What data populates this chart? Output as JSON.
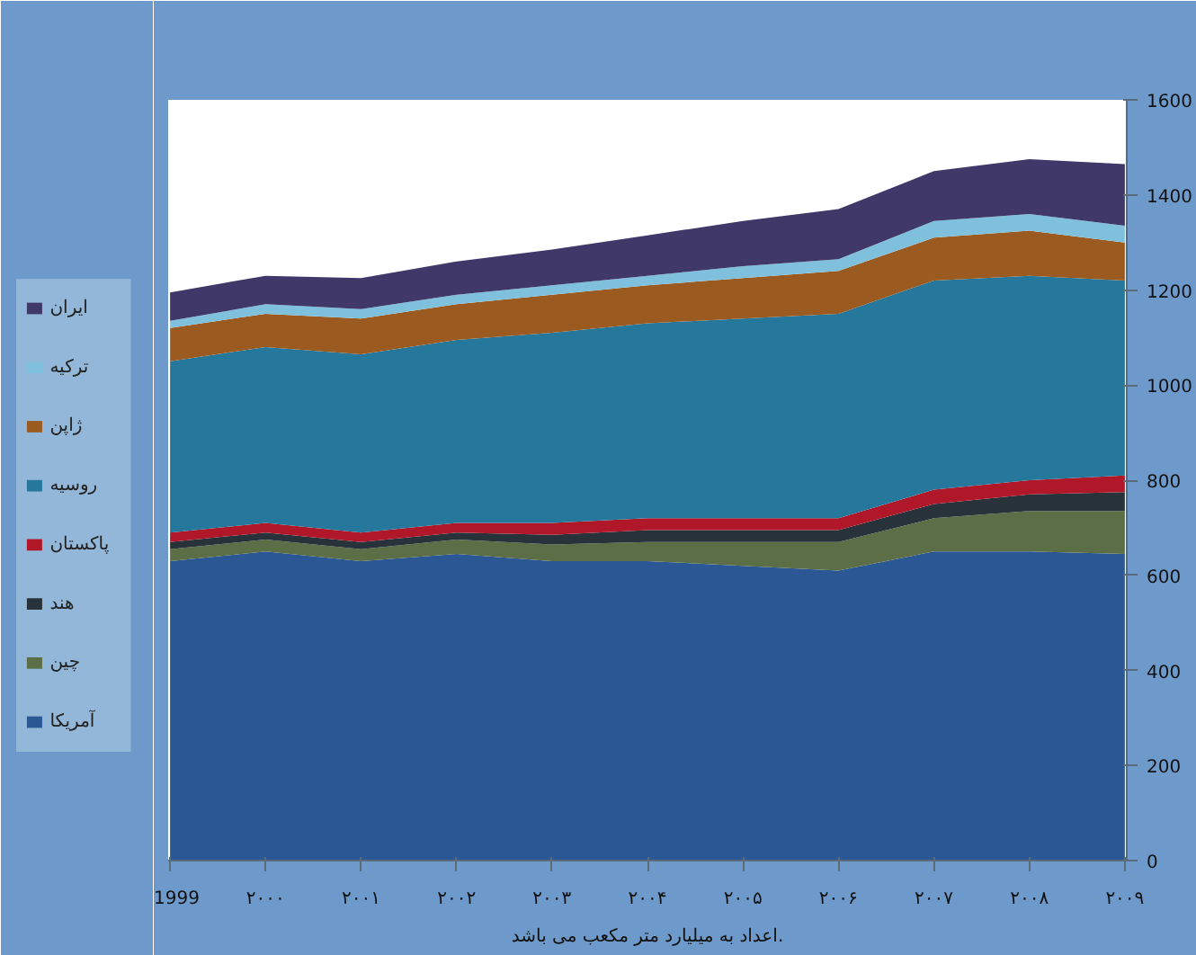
{
  "chart_data": {
    "type": "area",
    "stacked": true,
    "categories": [
      "1999",
      "۲۰۰۰",
      "۲۰۰۱",
      "۲۰۰۲",
      "۲۰۰۳",
      "۲۰۰۴",
      "۲۰۰۵",
      "۲۰۰۶",
      "۲۰۰۷",
      "۲۰۰۸",
      "۲۰۰۹"
    ],
    "series": [
      {
        "name": "آمریکا",
        "color": "#2b5894",
        "values": [
          630,
          650,
          630,
          645,
          630,
          630,
          620,
          610,
          650,
          650,
          645
        ]
      },
      {
        "name": "چین",
        "color": "#5c6e45",
        "values": [
          25,
          25,
          25,
          30,
          35,
          40,
          50,
          60,
          70,
          85,
          90
        ]
      },
      {
        "name": "هند",
        "color": "#27323a",
        "values": [
          15,
          15,
          15,
          15,
          20,
          25,
          25,
          25,
          30,
          35,
          40
        ]
      },
      {
        "name": "پاکستان",
        "color": "#b0182a",
        "values": [
          20,
          20,
          20,
          20,
          25,
          25,
          25,
          25,
          30,
          30,
          35
        ]
      },
      {
        "name": "روسیه",
        "color": "#25779c",
        "values": [
          360,
          370,
          375,
          385,
          400,
          410,
          420,
          430,
          440,
          430,
          410
        ]
      },
      {
        "name": "ژاپن",
        "color": "#9b5b20",
        "values": [
          70,
          70,
          75,
          75,
          80,
          80,
          85,
          90,
          90,
          95,
          80
        ]
      },
      {
        "name": "ترکیه",
        "color": "#7fc0dd",
        "values": [
          15,
          20,
          20,
          20,
          20,
          20,
          25,
          25,
          35,
          35,
          35
        ]
      },
      {
        "name": "ایران",
        "color": "#3f3869",
        "values": [
          60,
          60,
          65,
          70,
          75,
          85,
          95,
          105,
          105,
          115,
          130
        ]
      }
    ],
    "ylim": [
      0,
      1600
    ],
    "yticks": [
      0,
      200,
      400,
      600,
      800,
      1000,
      1200,
      1400,
      1600
    ],
    "grid": false,
    "legend": "left",
    "annotations": [
      "اعداد به میلیارد متر مکعب می باشد."
    ]
  }
}
